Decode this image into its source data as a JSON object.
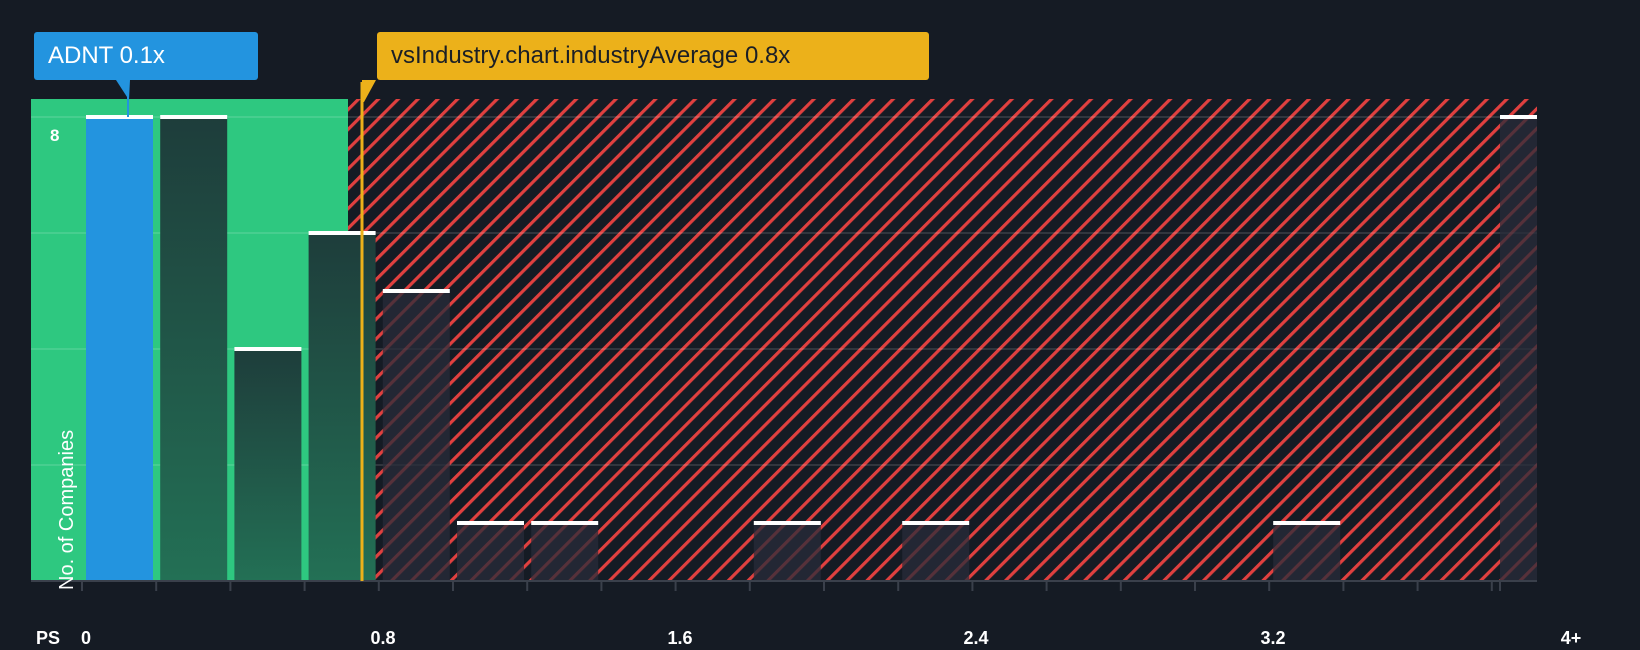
{
  "chart_data": {
    "type": "bar",
    "title": "",
    "xlabel": "PS",
    "ylabel": "No. of Companies",
    "x_ticks": [
      "0",
      "0.8",
      "1.6",
      "2.4",
      "3.2",
      "4+"
    ],
    "y_ticks": [
      "8"
    ],
    "ylim": [
      0,
      8.3
    ],
    "grid": true,
    "bin_width": 0.2,
    "categories": [
      "0-0.2",
      "0.2-0.4",
      "0.4-0.6",
      "0.6-0.8",
      "0.8-1.0",
      "1.0-1.2",
      "1.2-1.4",
      "1.8-2.0",
      "2.2-2.4",
      "3.2-3.4",
      "4+"
    ],
    "bin_starts": [
      0,
      0.2,
      0.4,
      0.6,
      0.8,
      1.0,
      1.2,
      1.8,
      2.2,
      3.2,
      4.0
    ],
    "values": [
      8,
      8,
      4,
      6,
      5,
      1,
      1,
      1,
      1,
      1,
      8
    ],
    "highlight_index": 0,
    "annotations": [
      {
        "label": "ADNT 0.1x",
        "x": 0.1,
        "color": "#2394df"
      },
      {
        "label": "vsIndustry.chart.industryAverage 0.8x",
        "x": 0.79,
        "color": "#ecb11a"
      }
    ],
    "zones": [
      {
        "name": "undervalued",
        "from": 0,
        "to": 0.75,
        "color": "#2ec880"
      },
      {
        "name": "overvalued",
        "from": 0.75,
        "to": 4.2,
        "pattern": "red-hatch",
        "color": "#e0403f"
      }
    ]
  },
  "labels": {
    "company_callout": "ADNT 0.1x",
    "industry_callout": "vsIndustry.chart.industryAverage 0.8x",
    "x_axis_name": "PS",
    "y_axis_title": "No. of Companies",
    "y_tick_8": "8",
    "x_ticks": [
      "0",
      "0.8",
      "1.6",
      "2.4",
      "3.2",
      "4+"
    ]
  },
  "colors": {
    "background": "#151b24",
    "green_zone": "#2ec880",
    "company_bar": "#2394df",
    "industry_line": "#ecb11a",
    "hatch": "#e0403f",
    "bar_cap": "#ffffff"
  }
}
